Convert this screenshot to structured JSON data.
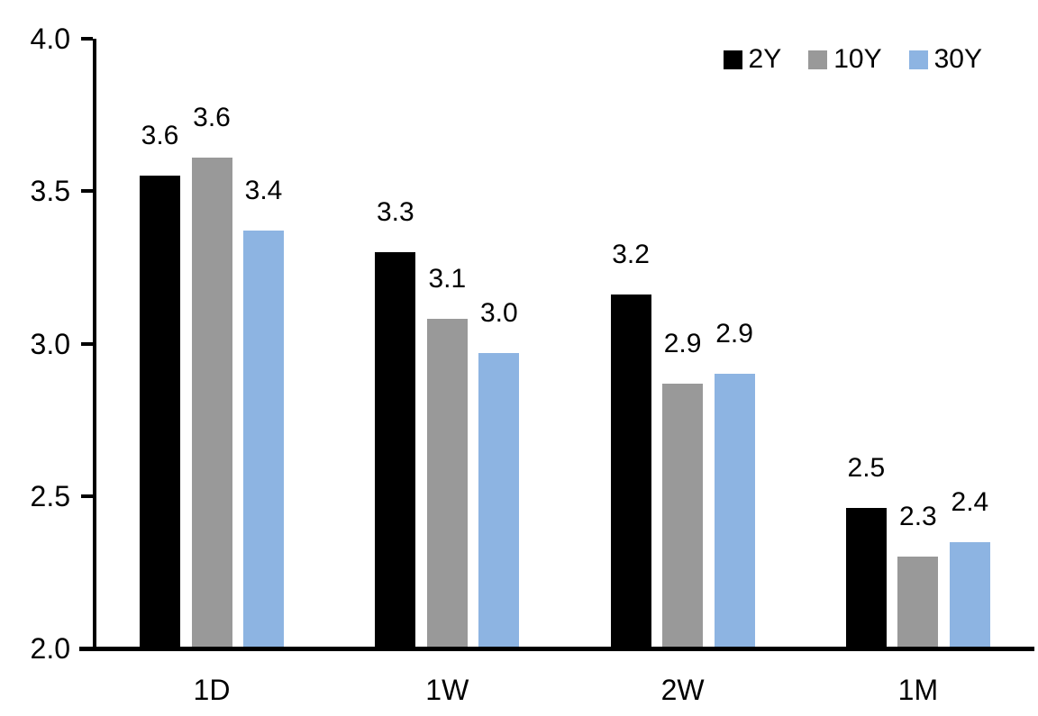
{
  "chart_data": {
    "type": "bar",
    "title": "",
    "xlabel": "",
    "ylabel": "",
    "categories": [
      "1D",
      "1W",
      "2W",
      "1M"
    ],
    "series": [
      {
        "name": "2Y",
        "color": "#000000",
        "values": [
          3.55,
          3.3,
          3.16,
          2.46
        ],
        "labels": [
          "3.6",
          "3.3",
          "3.2",
          "2.5"
        ]
      },
      {
        "name": "10Y",
        "color": "#999999",
        "values": [
          3.61,
          3.08,
          2.87,
          2.3
        ],
        "labels": [
          "3.6",
          "3.1",
          "2.9",
          "2.3"
        ]
      },
      {
        "name": "30Y",
        "color": "#8DB4E2",
        "values": [
          3.37,
          2.97,
          2.9,
          2.35
        ],
        "labels": [
          "3.4",
          "3.0",
          "2.9",
          "2.4"
        ]
      }
    ],
    "ylim": [
      2.0,
      4.0
    ],
    "ytick_labels": [
      "4.0",
      "3.5",
      "3.0",
      "2.5",
      "2.0"
    ],
    "ytick_values": [
      4.0,
      3.5,
      3.0,
      2.5,
      2.0
    ],
    "grid": false,
    "legend_position": "top-right",
    "axis_color": "#000000",
    "background_color": "#FFFFFF"
  }
}
